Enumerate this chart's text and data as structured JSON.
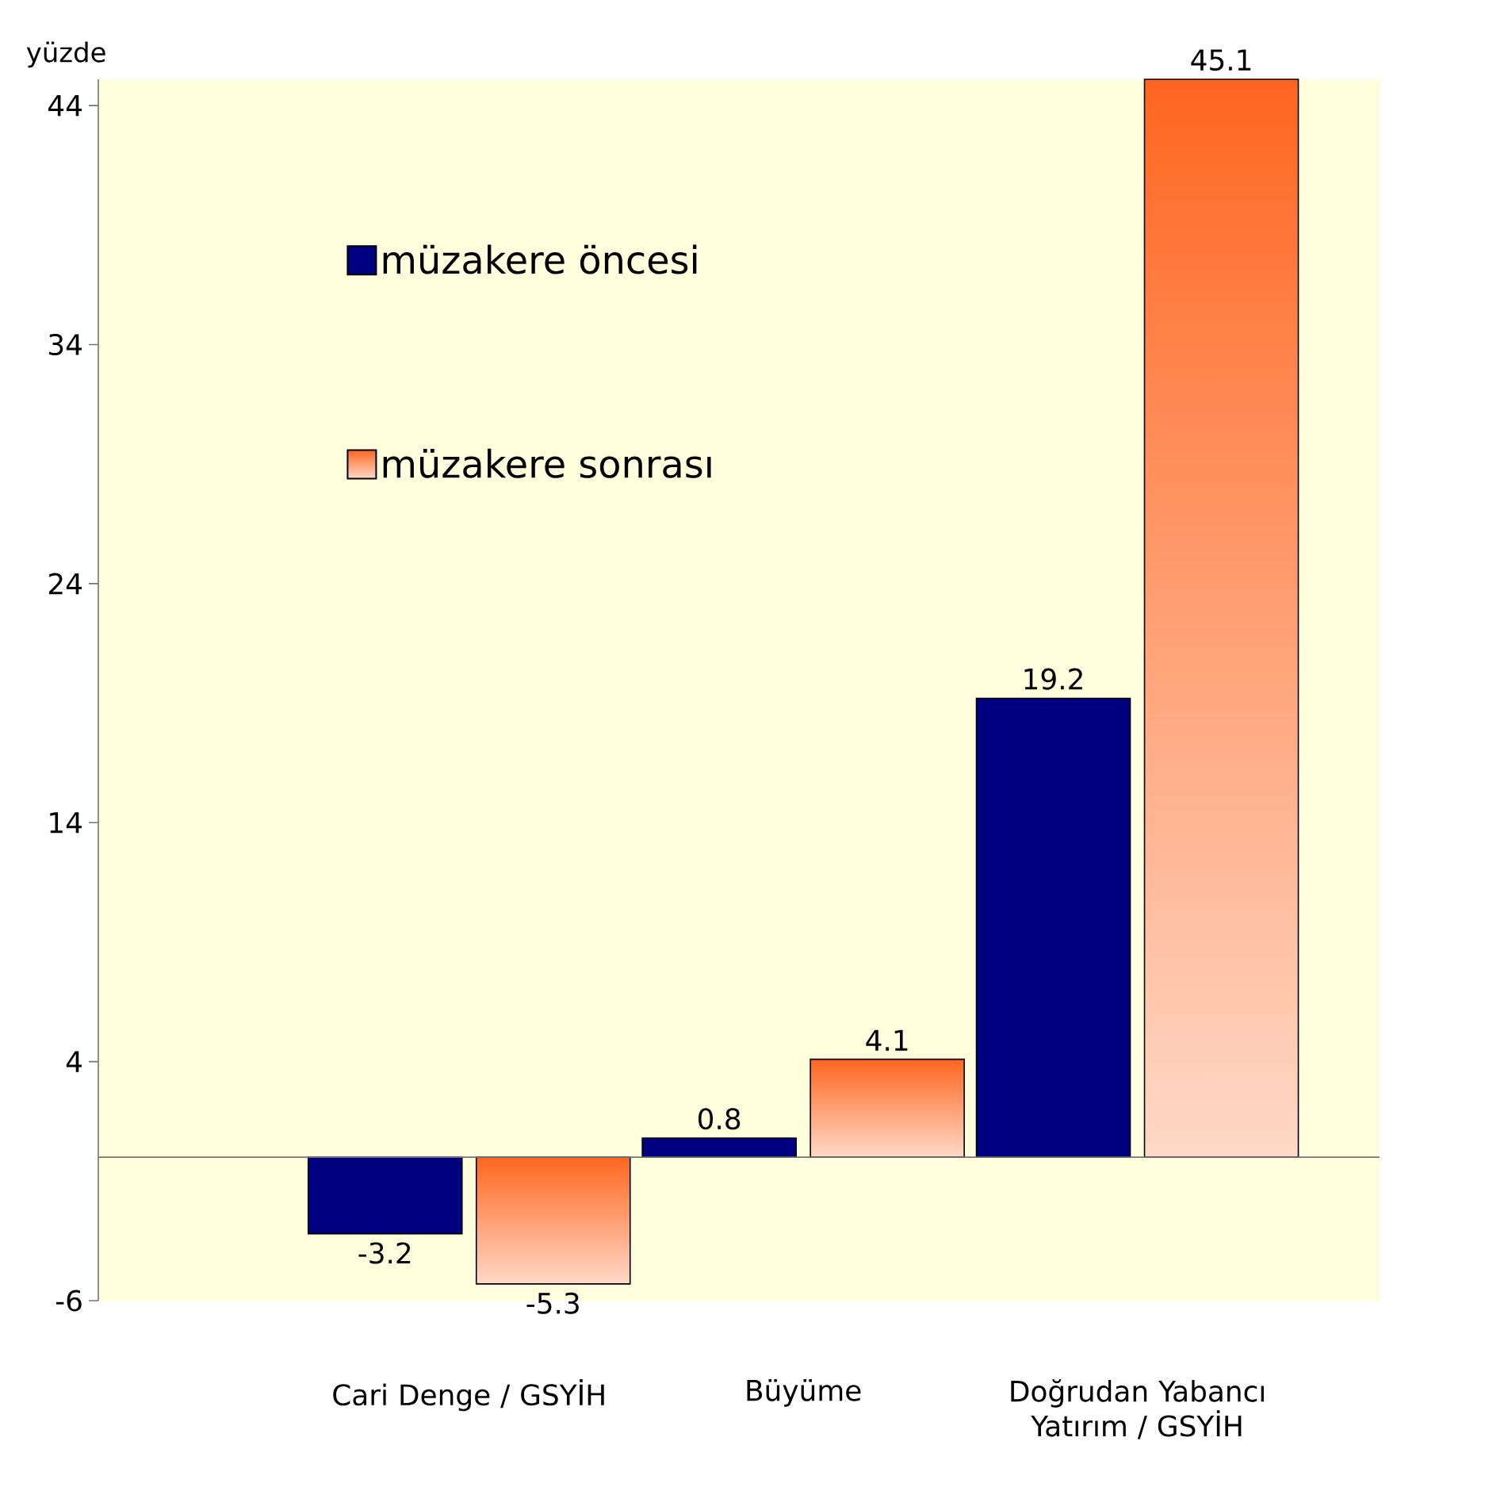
{
  "chart_data": {
    "type": "bar",
    "ylabel": "yüzde",
    "categories": [
      "Cari Denge / GSYİH",
      "Büyüme",
      "Doğrudan Yabancı Yatırım / GSYİH"
    ],
    "series": [
      {
        "name": "müzakere öncesi",
        "color": "#000080",
        "values": [
          -3.2,
          0.8,
          19.2
        ]
      },
      {
        "name": "müzakere sonrası",
        "color": "#ff6620",
        "values": [
          -5.3,
          4.1,
          45.1
        ]
      }
    ],
    "ylim": [
      -6,
      45.1
    ],
    "yticks": [
      -6,
      4,
      14,
      24,
      34,
      44
    ],
    "data_labels": true,
    "legend": "top left",
    "grid": false
  }
}
